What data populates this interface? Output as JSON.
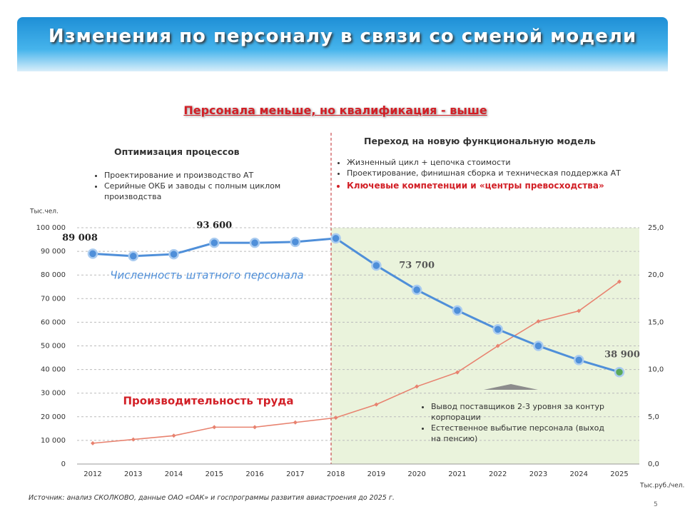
{
  "header": {
    "title": "Изменения по персоналу в связи со сменой модели",
    "subtitle": "Персонала меньше, но квалификация - выше"
  },
  "sections": [
    {
      "heading": "Оптимизация процессов",
      "bullets": [
        "Проектирование и производство АТ",
        "Серийные ОКБ и заводы с полным циклом производства"
      ]
    },
    {
      "heading": "Переход на новую функциональную модель",
      "bullets": [
        "Жизненный цикл + цепочка стоимости",
        "Проектирование, финишная сборка и техническая поддержка АТ",
        "Ключевые компетенции и «центры превосходства»"
      ]
    },
    {
      "bullets": [
        "Вывод поставщиков 2-3 уровня за контур корпорации",
        "Естественное выбытие персонала (выход на пенсию)"
      ]
    }
  ],
  "chart_data": {
    "type": "line",
    "y_label": "Тыс.чел.",
    "y2_label": "Тыс.руб./чел.",
    "categories": [
      "2012",
      "2013",
      "2014",
      "2015",
      "2016",
      "2017",
      "2018",
      "2019",
      "2020",
      "2021",
      "2022",
      "2023",
      "2024",
      "2025"
    ],
    "series": [
      {
        "name": "Численность штатного персонала",
        "color": "#4f8fd9",
        "axis": "y",
        "values": [
          89008,
          88000,
          88800,
          93600,
          93600,
          94000,
          95500,
          84000,
          73700,
          65000,
          57000,
          50000,
          44000,
          38900
        ],
        "value_labels": [
          "89 008",
          null,
          null,
          "93 600",
          null,
          null,
          null,
          null,
          "73 700",
          null,
          null,
          null,
          null,
          "38 900"
        ]
      },
      {
        "name": "Производительность труда",
        "color": "#e8826f",
        "axis": "y2",
        "values": [
          2.2,
          2.6,
          3.0,
          3.9,
          3.9,
          4.4,
          4.9,
          6.3,
          8.2,
          9.7,
          12.5,
          15.1,
          16.2,
          19.3
        ]
      }
    ],
    "ylim": [
      0,
      100000
    ],
    "yticks": [
      0,
      {
        "value": 10000,
        "label": "10 000"
      },
      {
        "value": 20000,
        "label": "20 000"
      },
      {
        "value": 30000,
        "label": "30 000"
      },
      {
        "value": 40000,
        "label": "40 000"
      },
      {
        "value": 50000,
        "label": "50 000"
      },
      {
        "value": 60000,
        "label": "60 000"
      },
      {
        "value": 70000,
        "label": "70 000"
      },
      {
        "value": 80000,
        "label": "80 000"
      },
      {
        "value": 90000,
        "label": "90 000"
      },
      {
        "value": 100000,
        "label": "100 000"
      }
    ],
    "y2lim": [
      0,
      25
    ],
    "y2ticks": [
      {
        "value": 0,
        "label": "0,0"
      },
      {
        "value": 5,
        "label": "5,0"
      },
      {
        "value": 10,
        "label": "10,0"
      },
      {
        "value": 15,
        "label": "15,0"
      },
      {
        "value": 20,
        "label": "20,0"
      },
      {
        "value": 25,
        "label": "25,0"
      }
    ],
    "grid": true
  },
  "source": "Источник: анализ СКОЛКОВО, данные ОАО «ОАК» и госпрограммы развития авиастроения до 2025 г.",
  "page_number": "5"
}
